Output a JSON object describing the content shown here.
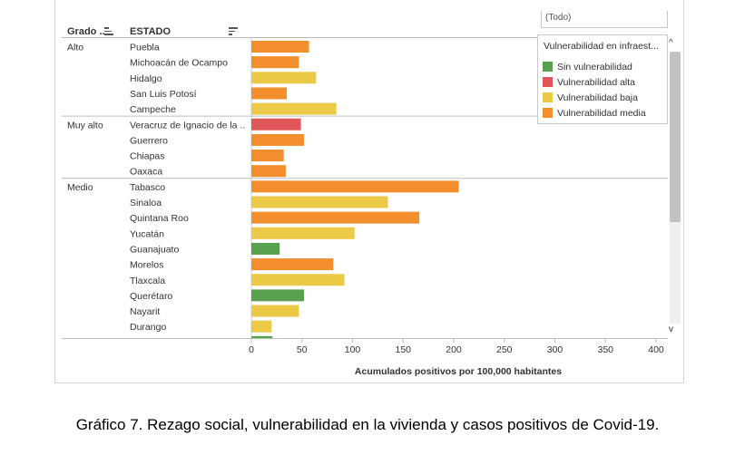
{
  "headers": {
    "grado": "Grado ..",
    "estado": "ESTADO"
  },
  "filter": {
    "value": "(Todo)"
  },
  "legend": {
    "title": "Vulnerabilidad en infraest...",
    "items": [
      {
        "label": "Sin vulnerabilidad",
        "color": "#59a14f"
      },
      {
        "label": "Vulnerabilidad alta",
        "color": "#e15759"
      },
      {
        "label": "Vulnerabilidad baja",
        "color": "#edc948"
      },
      {
        "label": "Vulnerabilidad media",
        "color": "#f28e2b"
      }
    ]
  },
  "scroll": {
    "up": "^",
    "down": "v"
  },
  "caption": "Gráfico 7. Rezago social, vulnerabilidad en la vivienda y casos positivos de Covid-19.",
  "chart_data": {
    "type": "bar",
    "orientation": "horizontal",
    "xlabel": "Acumulados positivos por 100,000 habitantes",
    "xlim": [
      0,
      400
    ],
    "xticks": [
      0,
      50,
      100,
      150,
      200,
      250,
      300,
      350,
      400
    ],
    "groups": [
      {
        "name": "Alto",
        "rows": [
          {
            "estado": "Puebla",
            "value": 57,
            "category": "Vulnerabilidad media"
          },
          {
            "estado": "Michoacán de Ocampo",
            "value": 47,
            "category": "Vulnerabilidad media"
          },
          {
            "estado": "Hidalgo",
            "value": 64,
            "category": "Vulnerabilidad baja"
          },
          {
            "estado": "San Luis Potosí",
            "value": 35,
            "category": "Vulnerabilidad media"
          },
          {
            "estado": "Campeche",
            "value": 84,
            "category": "Vulnerabilidad baja"
          }
        ]
      },
      {
        "name": "Muy alto",
        "rows": [
          {
            "estado": "Veracruz de Ignacio de la ..",
            "value": 49,
            "category": "Vulnerabilidad alta"
          },
          {
            "estado": "Guerrero",
            "value": 52,
            "category": "Vulnerabilidad media"
          },
          {
            "estado": "Chiapas",
            "value": 32,
            "category": "Vulnerabilidad media"
          },
          {
            "estado": "Oaxaca",
            "value": 34,
            "category": "Vulnerabilidad media"
          }
        ]
      },
      {
        "name": "Medio",
        "rows": [
          {
            "estado": "Tabasco",
            "value": 205,
            "category": "Vulnerabilidad media"
          },
          {
            "estado": "Sinaloa",
            "value": 135,
            "category": "Vulnerabilidad baja"
          },
          {
            "estado": "Quintana Roo",
            "value": 166,
            "category": "Vulnerabilidad media"
          },
          {
            "estado": "Yucatán",
            "value": 102,
            "category": "Vulnerabilidad baja"
          },
          {
            "estado": "Guanajuato",
            "value": 28,
            "category": "Sin vulnerabilidad"
          },
          {
            "estado": "Morelos",
            "value": 81,
            "category": "Vulnerabilidad media"
          },
          {
            "estado": "Tlaxcala",
            "value": 92,
            "category": "Vulnerabilidad baja"
          },
          {
            "estado": "Querétaro",
            "value": 52,
            "category": "Sin vulnerabilidad"
          },
          {
            "estado": "Nayarit",
            "value": 47,
            "category": "Vulnerabilidad baja"
          },
          {
            "estado": "Durango",
            "value": 20,
            "category": "Vulnerabilidad baja"
          },
          {
            "estado": "",
            "value": 21,
            "category": "Sin vulnerabilidad"
          }
        ]
      }
    ]
  }
}
